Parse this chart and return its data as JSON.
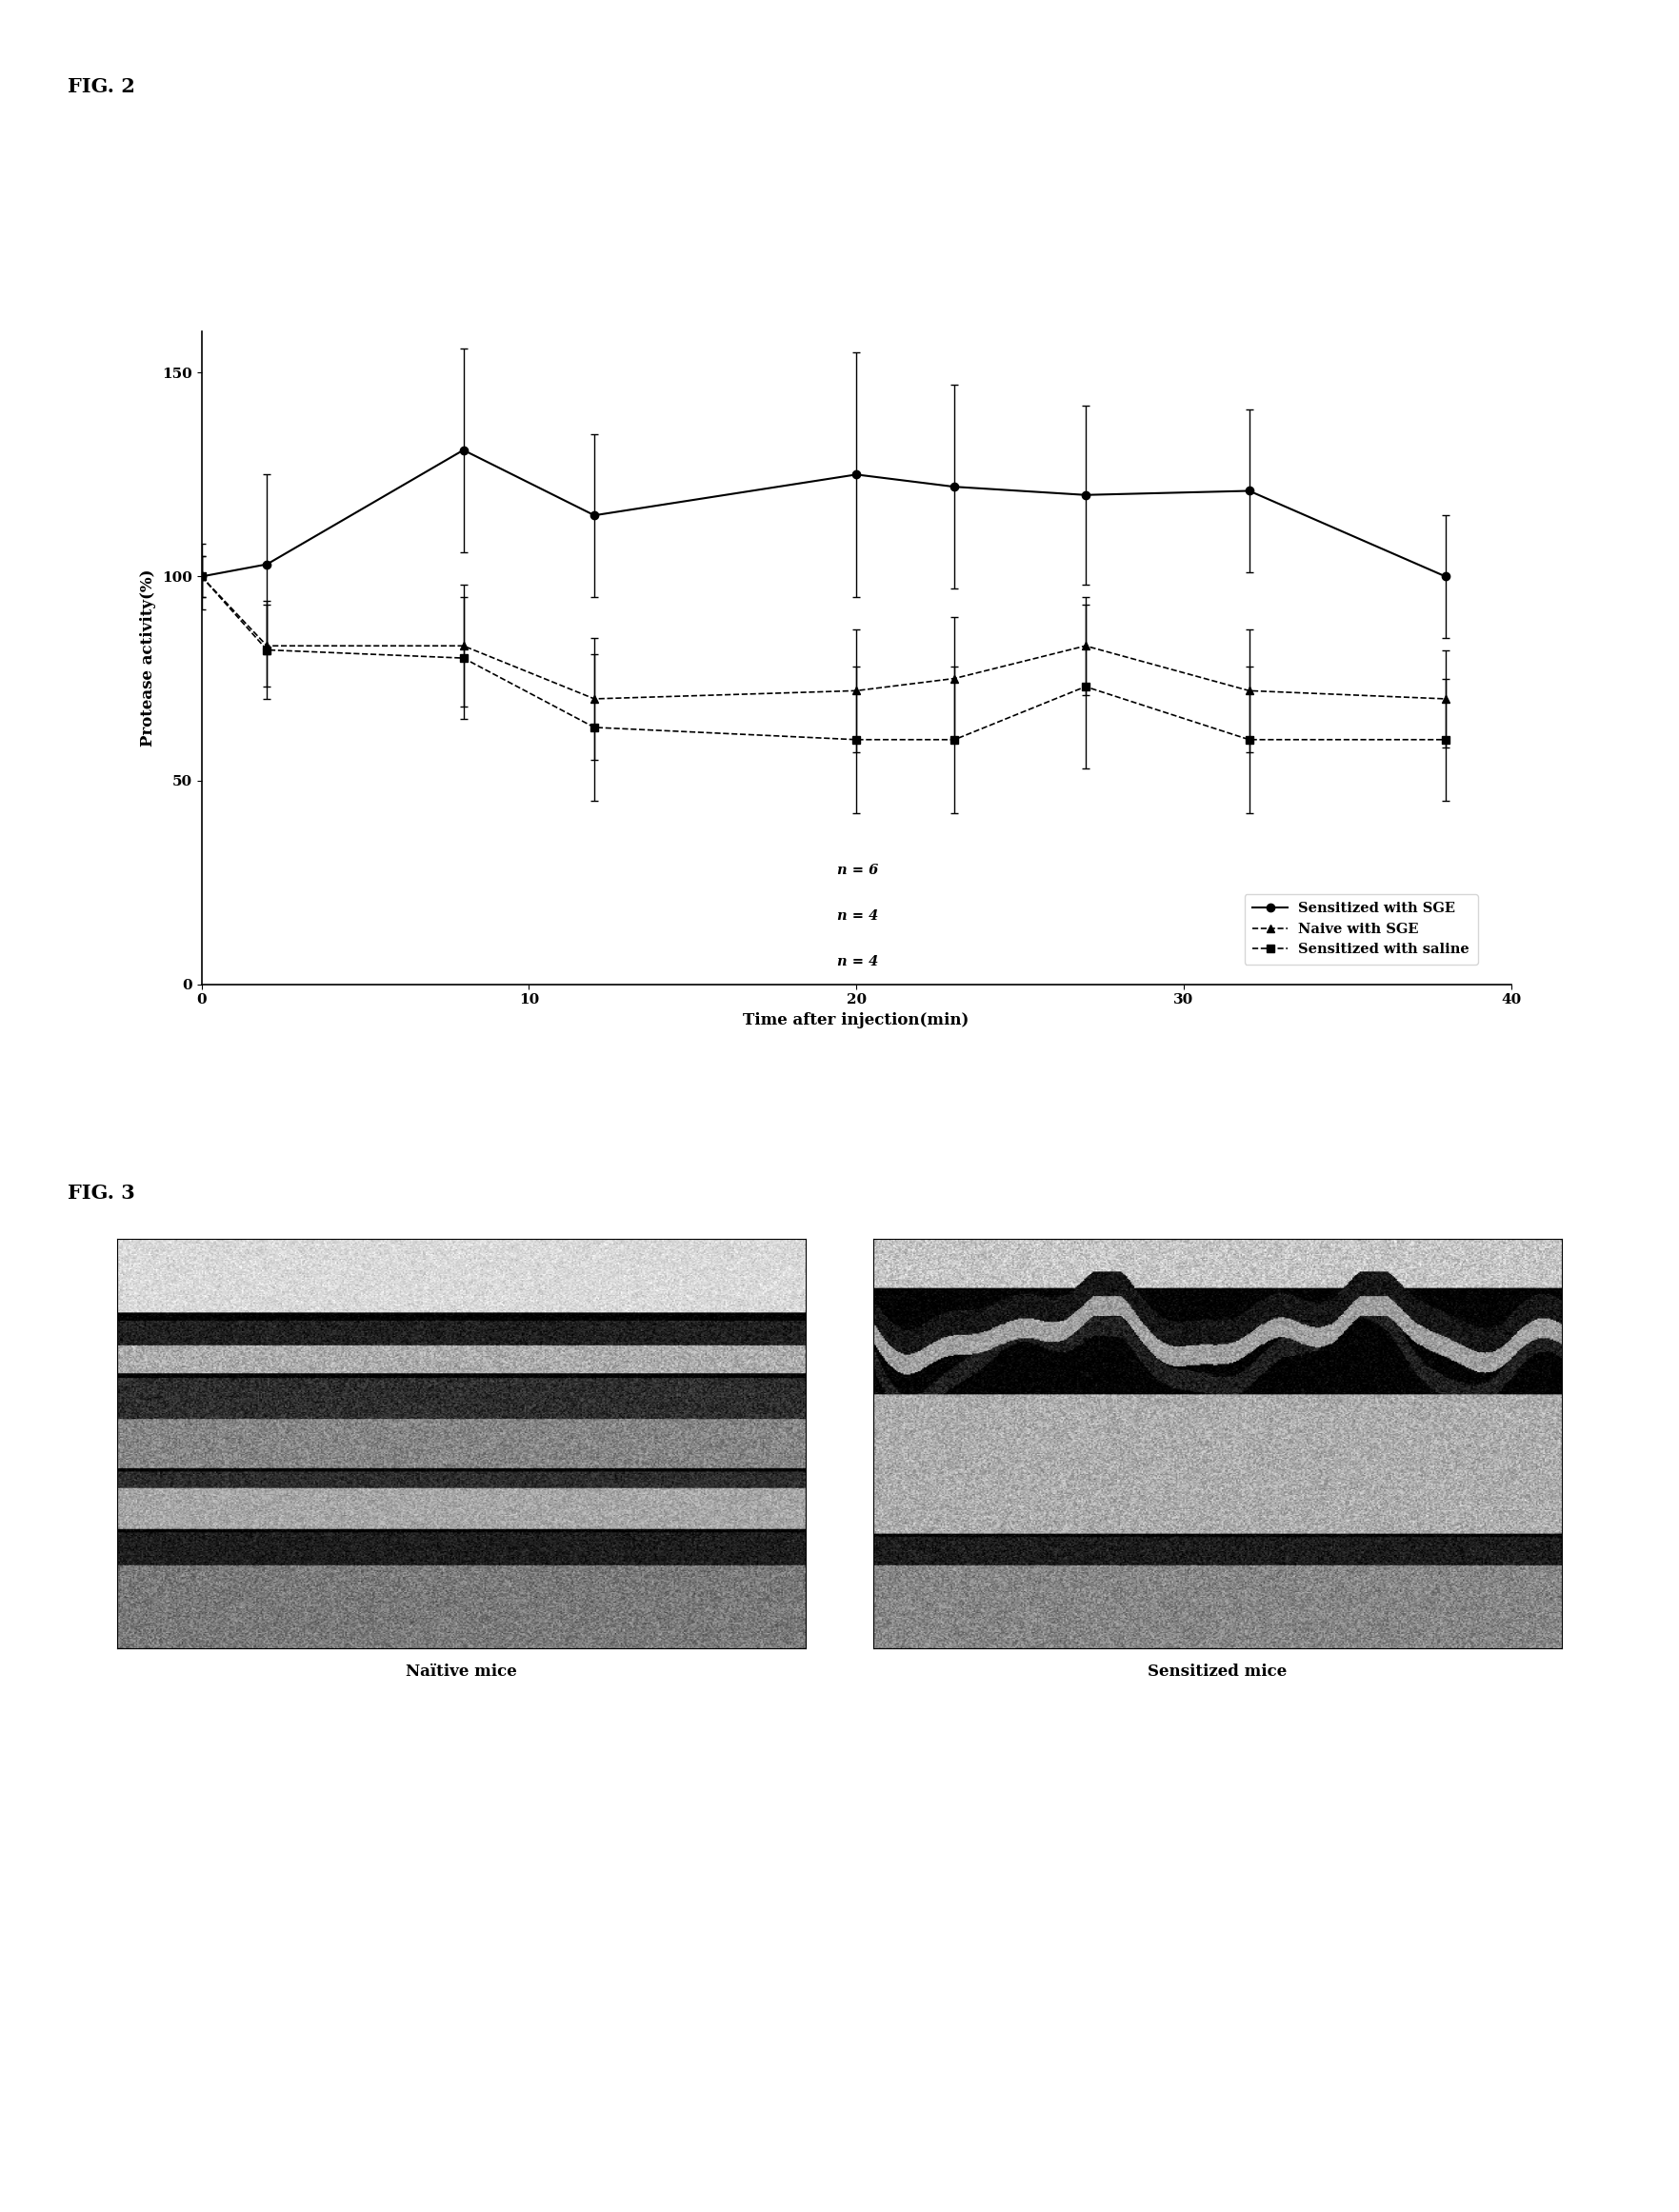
{
  "fig2_title": "FIG. 2",
  "fig3_title": "FIG. 3",
  "xlabel": "Time after injection(min)",
  "ylabel": "Protease activity(%)",
  "xlim": [
    0,
    40
  ],
  "ylim": [
    0,
    160
  ],
  "yticks": [
    0,
    50,
    100,
    150
  ],
  "xticks": [
    0,
    10,
    20,
    30,
    40
  ],
  "time_points": [
    0,
    2,
    8,
    12,
    20,
    23,
    27,
    32,
    38
  ],
  "sensitized_sge_y": [
    100,
    103,
    131,
    115,
    125,
    122,
    120,
    121,
    100
  ],
  "sensitized_sge_err": [
    5,
    22,
    25,
    20,
    30,
    25,
    22,
    20,
    15
  ],
  "naive_sge_y": [
    100,
    83,
    83,
    70,
    72,
    75,
    83,
    72,
    70
  ],
  "naive_sge_err": [
    8,
    10,
    15,
    15,
    15,
    15,
    12,
    15,
    12
  ],
  "sensitized_saline_y": [
    100,
    82,
    80,
    63,
    60,
    60,
    73,
    60,
    60
  ],
  "sensitized_saline_err": [
    5,
    12,
    15,
    18,
    18,
    18,
    20,
    18,
    15
  ],
  "legend_n1": "n = 6",
  "legend_n2": "n = 4",
  "legend_n3": "n = 4",
  "legend_label1": "Sensitized with SGE",
  "legend_label2": "Naive with SGE",
  "legend_label3": "Sensitized with saline",
  "naive_mice_label": "Naïtive mice",
  "sensitized_mice_label": "Sensitized mice",
  "bg_color": "#ffffff"
}
